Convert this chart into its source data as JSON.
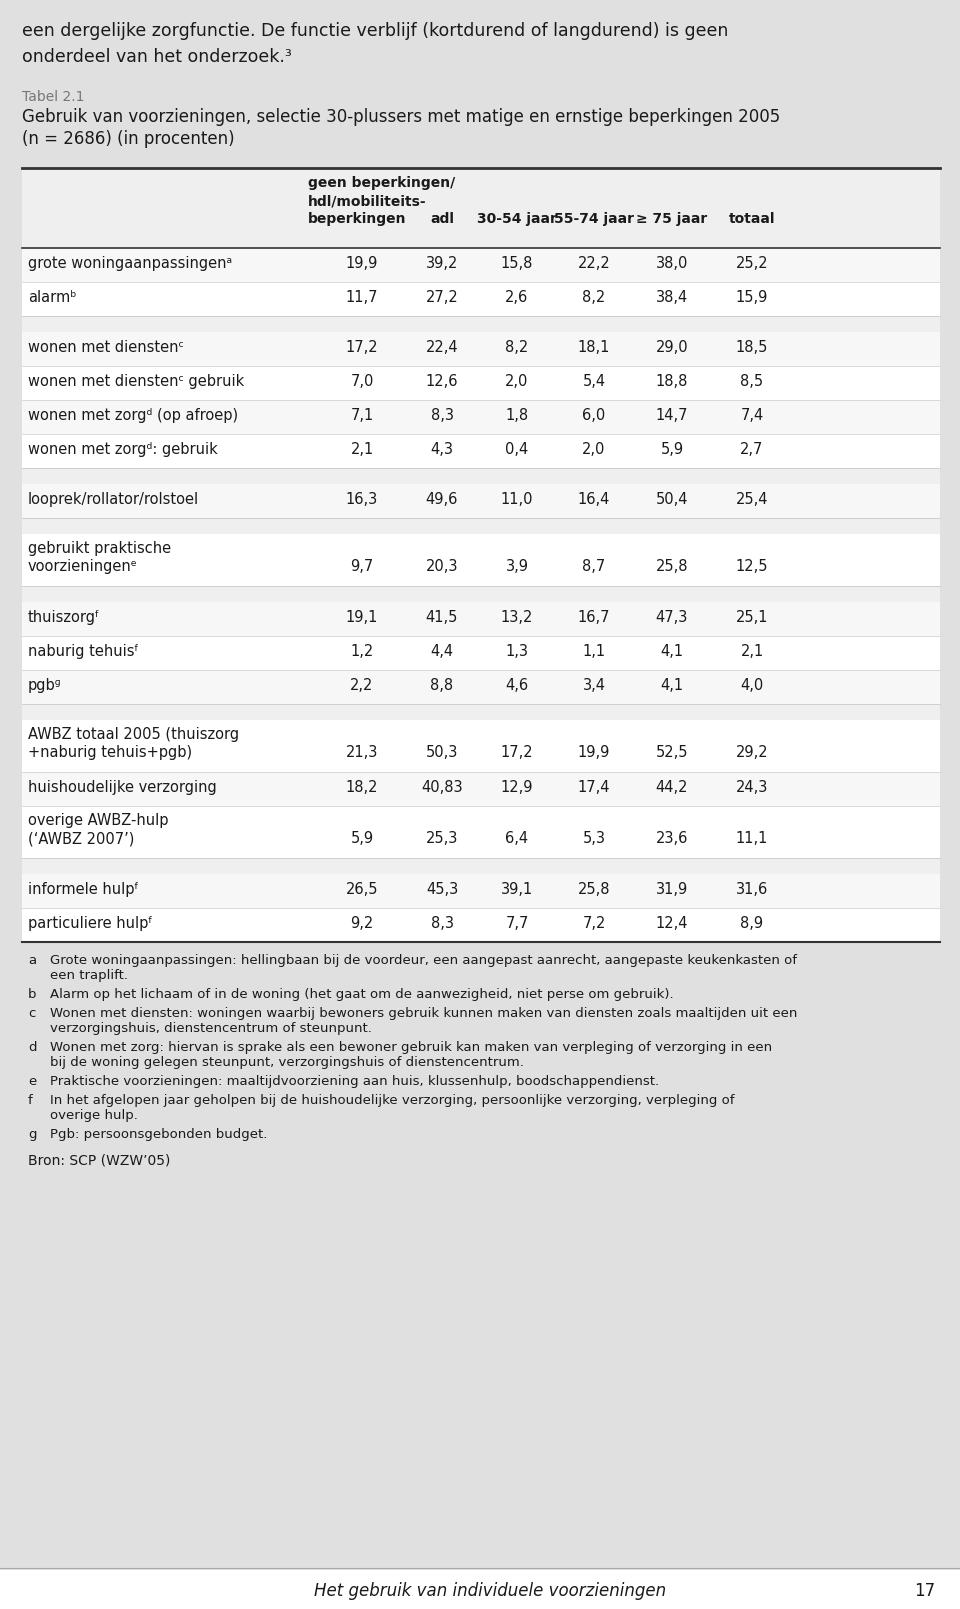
{
  "intro_text_line1": "een dergelijke zorgfunctie. De functie verblijf (kortdurend of langdurend) is geen",
  "intro_text_line2": "onderdeel van het onderzoek.³",
  "table_label": "Tabel 2.1",
  "table_title_line1": "Gebruik van voorzieningen, selectie 30-plussers met matige en ernstige beperkingen 2005",
  "table_title_line2": "(n = 2686) (in procenten)",
  "col_header_line1": "geen beperkingen/",
  "col_header_line2": "hdl/mobiliteits-",
  "col_header_line3": "beperkingen",
  "col_headers_short": [
    "adl",
    "30-54 jaar",
    "55-74 jaar",
    "≥ 75 jaar",
    "totaal"
  ],
  "rows": [
    {
      "label": "grote woningaanpassingenᵃ",
      "values": [
        "19,9",
        "39,2",
        "15,8",
        "22,2",
        "38,0",
        "25,2"
      ],
      "group": 1,
      "multiline": false
    },
    {
      "label": "alarmᵇ",
      "values": [
        "11,7",
        "27,2",
        "2,6",
        "8,2",
        "38,4",
        "15,9"
      ],
      "group": 1,
      "multiline": false
    },
    {
      "label": "wonen met dienstenᶜ",
      "values": [
        "17,2",
        "22,4",
        "8,2",
        "18,1",
        "29,0",
        "18,5"
      ],
      "group": 2,
      "multiline": false
    },
    {
      "label": "wonen met dienstenᶜ gebruik",
      "values": [
        "7,0",
        "12,6",
        "2,0",
        "5,4",
        "18,8",
        "8,5"
      ],
      "group": 2,
      "multiline": false
    },
    {
      "label": "wonen met zorgᵈ (op afroep)",
      "values": [
        "7,1",
        "8,3",
        "1,8",
        "6,0",
        "14,7",
        "7,4"
      ],
      "group": 2,
      "multiline": false
    },
    {
      "label": "wonen met zorgᵈ: gebruik",
      "values": [
        "2,1",
        "4,3",
        "0,4",
        "2,0",
        "5,9",
        "2,7"
      ],
      "group": 2,
      "multiline": false
    },
    {
      "label": "looprek/rollator/rolstoel",
      "values": [
        "16,3",
        "49,6",
        "11,0",
        "16,4",
        "50,4",
        "25,4"
      ],
      "group": 3,
      "multiline": false
    },
    {
      "label": "gebruikt praktische\nvoorzieningenᵉ",
      "values": [
        "9,7",
        "20,3",
        "3,9",
        "8,7",
        "25,8",
        "12,5"
      ],
      "group": 4,
      "multiline": true
    },
    {
      "label": "thuiszorgᶠ",
      "values": [
        "19,1",
        "41,5",
        "13,2",
        "16,7",
        "47,3",
        "25,1"
      ],
      "group": 5,
      "multiline": false
    },
    {
      "label": "naburig tehuisᶠ",
      "values": [
        "1,2",
        "4,4",
        "1,3",
        "1,1",
        "4,1",
        "2,1"
      ],
      "group": 5,
      "multiline": false
    },
    {
      "label": "pgbᶢ",
      "values": [
        "2,2",
        "8,8",
        "4,6",
        "3,4",
        "4,1",
        "4,0"
      ],
      "group": 5,
      "multiline": false
    },
    {
      "label": "AWBZ totaal 2005 (thuiszorg\n+naburig tehuis+pgb)",
      "values": [
        "21,3",
        "50,3",
        "17,2",
        "19,9",
        "52,5",
        "29,2"
      ],
      "group": 6,
      "multiline": true
    },
    {
      "label": "huishoudelijke verzorging",
      "values": [
        "18,2",
        "40,83",
        "12,9",
        "17,4",
        "44,2",
        "24,3"
      ],
      "group": 6,
      "multiline": false
    },
    {
      "label": "overige AWBZ-hulp\n(‘AWBZ 2007’)",
      "values": [
        "5,9",
        "25,3",
        "6,4",
        "5,3",
        "23,6",
        "11,1"
      ],
      "group": 6,
      "multiline": true
    },
    {
      "label": "informele hulpᶠ",
      "values": [
        "26,5",
        "45,3",
        "39,1",
        "25,8",
        "31,9",
        "31,6"
      ],
      "group": 7,
      "multiline": false
    },
    {
      "label": "particuliere hulpᶠ",
      "values": [
        "9,2",
        "8,3",
        "7,7",
        "7,2",
        "12,4",
        "8,9"
      ],
      "group": 7,
      "multiline": false
    }
  ],
  "footnotes": [
    [
      "a",
      "Grote woningaanpassingen: hellingbaan bij de voordeur, een aangepast aanrecht, aangepaste keukenkasten of een traplift."
    ],
    [
      "b",
      "Alarm op het lichaam of in de woning (het gaat om de aanwezigheid, niet perse om gebruik)."
    ],
    [
      "c",
      "Wonen met diensten: woningen waarbij bewoners gebruik kunnen maken van diensten zoals maaltijden uit een verzorgingshuis, dienstencentrum of steunpunt."
    ],
    [
      "d",
      "Wonen met zorg: hiervan is sprake als een bewoner gebruik kan maken van verpleging of verzorging in een bij de woning gelegen steunpunt, verzorgingshuis of dienstencentrum."
    ],
    [
      "e",
      "Praktische voorzieningen: maaltijdvoorziening aan huis, klussenhulp, boodschappendienst."
    ],
    [
      "f",
      "In het afgelopen jaar geholpen bij de huishoudelijke verzorging, persoonlijke verzorging, verpleging of overige hulp."
    ],
    [
      "g",
      "Pgb: persoonsgebonden budget."
    ]
  ],
  "source": "Bron: SCP (WZW’05)",
  "footer_text": "Het gebruik van individuele voorzieningen",
  "footer_page": "17",
  "page_bg": "#e0e0e0",
  "table_bg_white": "#ffffff",
  "table_bg_gray": "#ebebeb",
  "header_bg": "#e8e8e8",
  "dark_line": "#333333",
  "light_line": "#cccccc",
  "text_dark": "#1a1a1a",
  "text_gray": "#777777"
}
